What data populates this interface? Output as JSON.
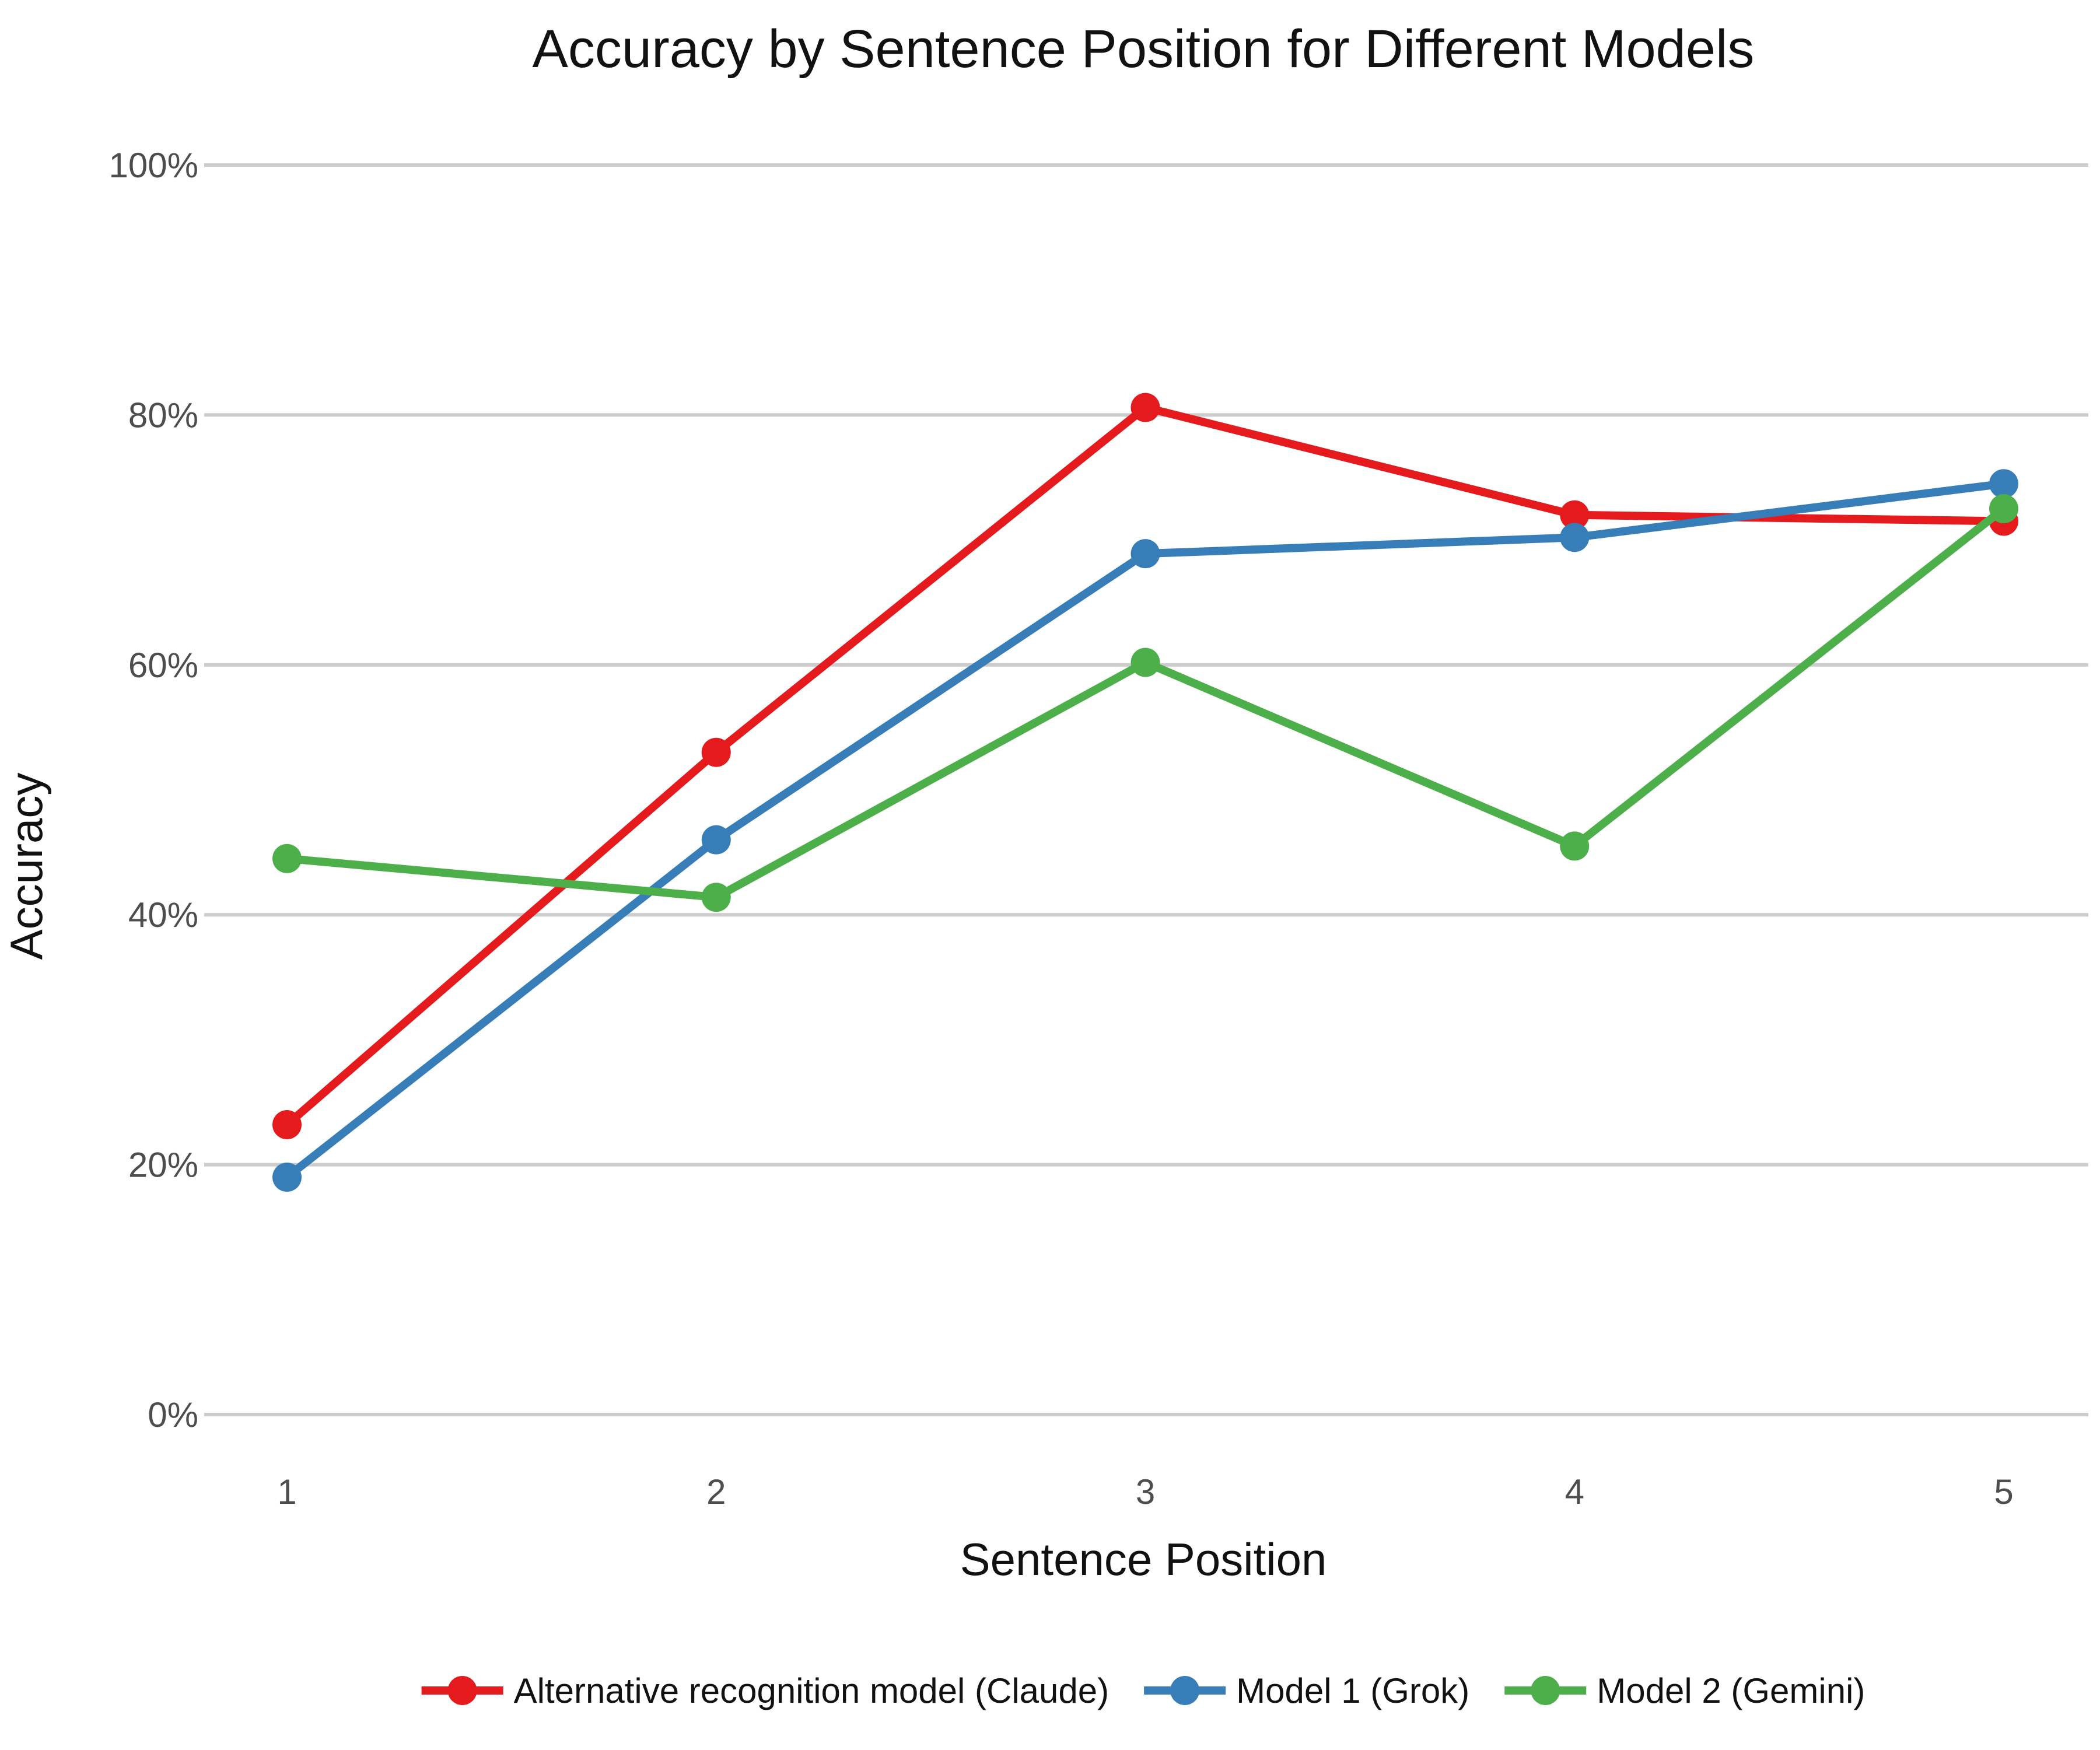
{
  "chart_data": {
    "type": "line",
    "title": "Accuracy by Sentence Position for Different Models",
    "xlabel": "Sentence Position",
    "ylabel": "Accuracy",
    "categories": [
      "1",
      "2",
      "3",
      "4",
      "5"
    ],
    "x": [
      1,
      2,
      3,
      4,
      5
    ],
    "xlim": [
      1,
      5
    ],
    "ylim": [
      0,
      100
    ],
    "y_ticks": [
      0,
      20,
      40,
      60,
      80,
      100
    ],
    "y_tick_labels": [
      "0%",
      "20%",
      "40%",
      "60%",
      "80%",
      "100%"
    ],
    "x_tick_labels": [
      "1",
      "2",
      "3",
      "4",
      "5"
    ],
    "grid": "horizontal",
    "legend_position": "bottom",
    "series": [
      {
        "name": "Alternative recognition model (Claude)",
        "color": "#e41a1c",
        "values": [
          23.2,
          53.0,
          80.6,
          72.0,
          71.5
        ]
      },
      {
        "name": "Model 1 (Grok)",
        "color": "#377eb8",
        "values": [
          19.0,
          46.0,
          68.9,
          70.2,
          74.5
        ]
      },
      {
        "name": "Model 2 (Gemini)",
        "color": "#4daf4a",
        "values": [
          44.5,
          41.4,
          60.2,
          45.5,
          72.5
        ]
      }
    ]
  }
}
